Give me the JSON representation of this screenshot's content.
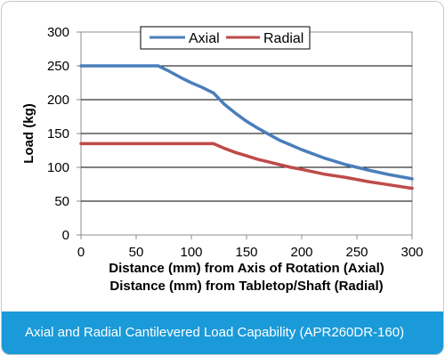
{
  "chart_data": {
    "type": "line",
    "xlabel_lines": [
      "Distance (mm) from Axis of Rotation (Axial)",
      "Distance (mm) from Tabletop/Shaft (Radial)"
    ],
    "ylabel": "Load (kg)",
    "xlim": [
      0,
      300
    ],
    "ylim": [
      0,
      300
    ],
    "x_ticks": [
      0,
      50,
      100,
      150,
      200,
      250,
      300
    ],
    "y_ticks": [
      0,
      50,
      100,
      150,
      200,
      250,
      300
    ],
    "grid": "horizontal",
    "legend_position": "top-center",
    "series": [
      {
        "name": "Axial",
        "color": "#4a7ebb",
        "x": [
          0,
          70,
          80,
          90,
          100,
          110,
          120,
          130,
          140,
          150,
          160,
          170,
          180,
          190,
          200,
          220,
          240,
          260,
          280,
          300
        ],
        "y": [
          250,
          250,
          242,
          233,
          225,
          218,
          210,
          193,
          180,
          168,
          158,
          149,
          140,
          133,
          126,
          114,
          104,
          96,
          89,
          83
        ]
      },
      {
        "name": "Radial",
        "color": "#be4b48",
        "x": [
          0,
          120,
          130,
          140,
          150,
          160,
          170,
          180,
          190,
          200,
          220,
          240,
          260,
          280,
          300
        ],
        "y": [
          135,
          135,
          128,
          122,
          117,
          112,
          108,
          104,
          100,
          97,
          90,
          85,
          79,
          74,
          69
        ]
      }
    ]
  },
  "caption": "Axial and Radial Cantilevered Load Capability (APR260DR-160)"
}
